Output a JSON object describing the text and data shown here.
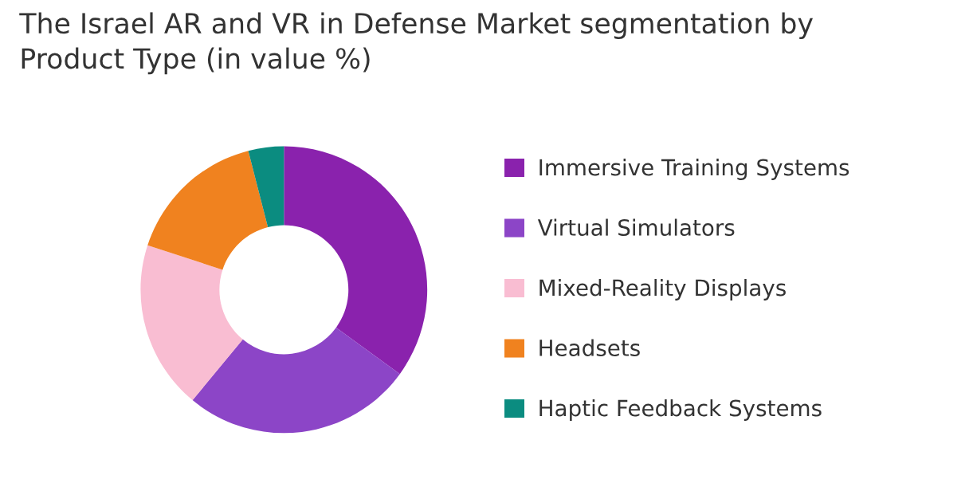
{
  "chart_data": {
    "type": "donut",
    "title": "The Israel AR and VR in Defense Market segmentation by\nProduct Type (in value %)",
    "categories": [
      "Immersive Training Systems",
      "Virtual Simulators",
      "Mixed-Reality Displays",
      "Headsets",
      "Haptic Feedback Systems"
    ],
    "values": [
      35,
      26,
      19,
      16,
      4
    ],
    "colors": [
      "#8a22ad",
      "#8c45c7",
      "#f9bdd2",
      "#f0821f",
      "#0b8c80"
    ],
    "legend": "right"
  }
}
